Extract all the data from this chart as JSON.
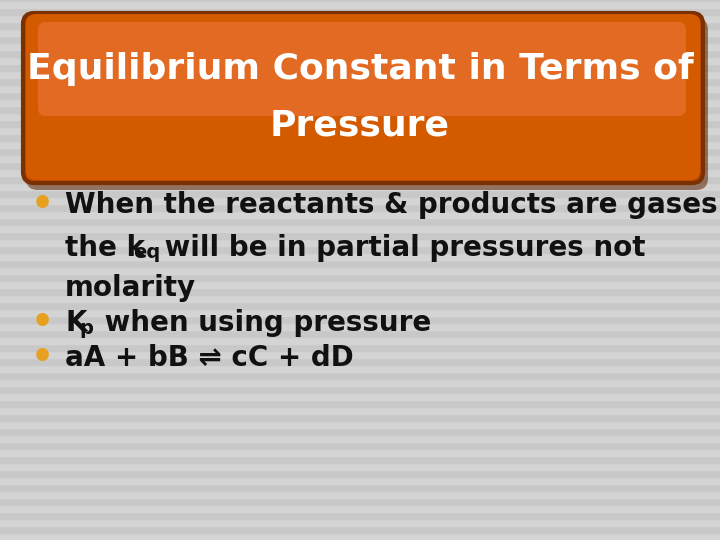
{
  "title_line1": "Equilibrium Constant in Terms of",
  "title_line2": "Pressure",
  "title_text_color": "#ffffff",
  "bg_stripe_light": "#d4d4d4",
  "bg_stripe_dark": "#c8c8c8",
  "bg_base": "#cccccc",
  "bullet_color": "#e8a020",
  "bullet1_line1": "When the reactants & products are gases",
  "bullet1_line2_pre": "the k",
  "bullet1_sub": "eq",
  "bullet1_line2_post": " will be in partial pressures not",
  "bullet1_line3": "molarity",
  "bullet2_main": "K",
  "bullet2_sub": "p",
  "bullet2_rest": " when using pressure",
  "bullet3": "aA + bB ⇌ cC + dD",
  "text_color": "#111111",
  "title_box_outer": "#7a3000",
  "title_box_mid": "#c04a00",
  "title_box_main": "#d45a00",
  "title_box_highlight": "#e87030",
  "shadow_color": "#5a2000",
  "font_size_title": 26,
  "font_size_body": 20
}
